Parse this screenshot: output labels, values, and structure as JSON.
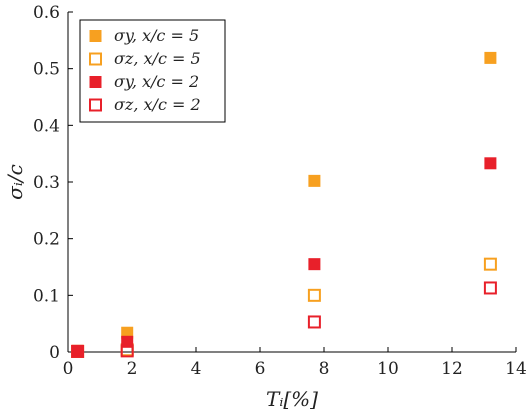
{
  "chart_data": {
    "type": "scatter",
    "xlabel": "Tᵢ[%]",
    "ylabel": "σᵢ/c",
    "xlim": [
      0,
      14
    ],
    "ylim": [
      0,
      0.6
    ],
    "x_ticks": [
      "0",
      "2",
      "4",
      "6",
      "8",
      "10",
      "12",
      "14"
    ],
    "y_ticks": [
      "0",
      "0.1",
      "0.2",
      "0.3",
      "0.4",
      "0.5",
      "0.6"
    ],
    "grid": false,
    "legend_position": "top-left",
    "series": [
      {
        "name": "σy, x/c = 5",
        "color": "#F7A020",
        "marker": "filled-square",
        "x": [
          0.3,
          1.85,
          7.7,
          13.2
        ],
        "y": [
          0.002,
          0.034,
          0.302,
          0.519
        ]
      },
      {
        "name": "σz, x/c = 5",
        "color": "#F7A020",
        "marker": "open-square",
        "x": [
          0.3,
          1.85,
          7.7,
          13.2
        ],
        "y": [
          0.001,
          0.004,
          0.1,
          0.155
        ]
      },
      {
        "name": "σy, x/c = 2",
        "color": "#E8202A",
        "marker": "filled-square",
        "x": [
          0.3,
          1.85,
          7.7,
          13.2
        ],
        "y": [
          0.002,
          0.018,
          0.155,
          0.333
        ]
      },
      {
        "name": "σz, x/c = 2",
        "color": "#E8202A",
        "marker": "open-square",
        "x": [
          0.3,
          1.85,
          7.7,
          13.2
        ],
        "y": [
          0.001,
          0.002,
          0.053,
          0.113
        ]
      }
    ]
  }
}
